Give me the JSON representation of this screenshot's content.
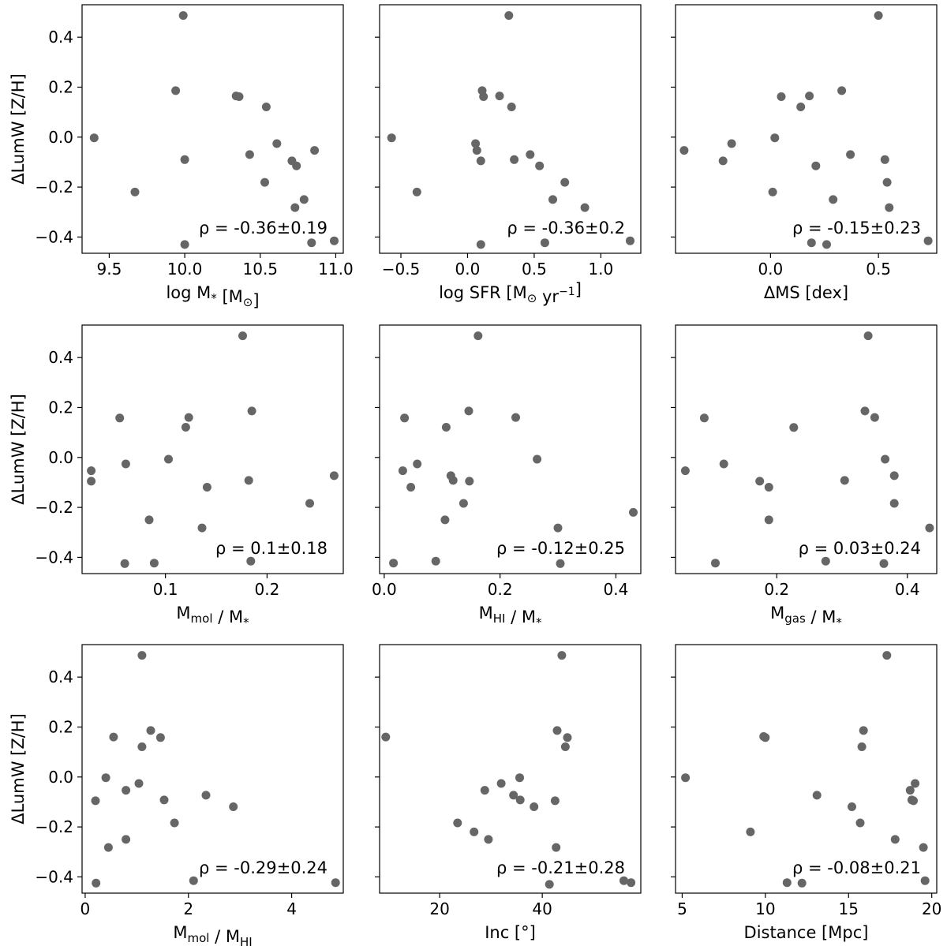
{
  "figure": {
    "ylabel": "ΔLumW [Z/H]",
    "marker_color": "#666666"
  },
  "chart_data": [
    {
      "type": "scatter",
      "xlabel": "log M* [M⊙]",
      "xlabel_parts": [
        {
          "t": "log M"
        },
        {
          "t": "*",
          "sub": true
        },
        {
          "t": " [M"
        },
        {
          "t": "⊙",
          "sub": true
        },
        {
          "t": "]"
        }
      ],
      "ylabel": "ΔLumW [Z/H]",
      "xlim": [
        9.32,
        11.05
      ],
      "ylim": [
        -0.465,
        0.53
      ],
      "xticks": [
        9.5,
        10.0,
        10.5,
        11.0
      ],
      "xtick_labels": [
        "9.5",
        "10.0",
        "10.5",
        "11.0"
      ],
      "yticks": [
        -0.4,
        -0.2,
        0.0,
        0.2,
        0.4
      ],
      "ytick_labels": [
        "−0.4",
        "−0.2",
        "0.0",
        "0.2",
        "0.4"
      ],
      "annotation": "ρ = -0.36±0.19",
      "x": [
        9.99,
        9.94,
        10.34,
        10.36,
        10.54,
        9.4,
        10.61,
        10.86,
        10.43,
        10.71,
        10.0,
        10.74,
        10.53,
        9.67,
        10.79,
        10.73,
        10.99,
        10.84,
        10.0
      ],
      "y": [
        0.487,
        0.186,
        0.165,
        0.162,
        0.121,
        -0.003,
        -0.026,
        -0.053,
        -0.07,
        -0.095,
        -0.09,
        -0.115,
        -0.181,
        -0.22,
        -0.25,
        -0.282,
        -0.415,
        -0.423,
        -0.43
      ]
    },
    {
      "type": "scatter",
      "xlabel": "log SFR [M⊙ yr−1]",
      "xlabel_parts": [
        {
          "t": "log SFR [M"
        },
        {
          "t": "⊙",
          "sub": true
        },
        {
          "t": " yr"
        },
        {
          "t": "−1",
          "sup": true
        },
        {
          "t": "]"
        }
      ],
      "ylabel": "",
      "xlim": [
        -0.66,
        1.3
      ],
      "ylim": [
        -0.465,
        0.53
      ],
      "xticks": [
        -0.5,
        0.0,
        0.5,
        1.0
      ],
      "xtick_labels": [
        "−0.5",
        "0.0",
        "0.5",
        "1.0"
      ],
      "yticks": [
        -0.4,
        -0.2,
        0.0,
        0.2,
        0.4
      ],
      "ytick_labels": [],
      "annotation": "ρ = -0.36±0.2",
      "x": [
        0.31,
        0.11,
        0.12,
        0.24,
        0.33,
        -0.57,
        0.06,
        0.07,
        0.47,
        0.1,
        0.35,
        0.54,
        0.73,
        -0.38,
        0.64,
        0.88,
        1.22,
        0.58,
        0.1
      ],
      "y": [
        0.487,
        0.186,
        0.162,
        0.165,
        0.121,
        -0.003,
        -0.026,
        -0.053,
        -0.07,
        -0.095,
        -0.09,
        -0.115,
        -0.181,
        -0.22,
        -0.25,
        -0.282,
        -0.415,
        -0.423,
        -0.43
      ]
    },
    {
      "type": "scatter",
      "xlabel": "ΔMS [dex]",
      "xlabel_parts": [
        {
          "t": "ΔMS [dex]"
        }
      ],
      "ylabel": "",
      "xlim": [
        -0.44,
        0.77
      ],
      "ylim": [
        -0.465,
        0.53
      ],
      "xticks": [
        0.0,
        0.5
      ],
      "xtick_labels": [
        "0.0",
        "0.5"
      ],
      "yticks": [
        -0.4,
        -0.2,
        0.0,
        0.2,
        0.4
      ],
      "ytick_labels": [],
      "annotation": "ρ = -0.15±0.23",
      "x": [
        0.5,
        0.33,
        0.05,
        0.18,
        0.14,
        0.02,
        -0.18,
        -0.4,
        0.37,
        -0.22,
        0.53,
        0.21,
        0.54,
        0.01,
        0.29,
        0.55,
        0.73,
        0.19,
        0.26
      ],
      "y": [
        0.487,
        0.186,
        0.162,
        0.165,
        0.121,
        -0.003,
        -0.026,
        -0.053,
        -0.07,
        -0.095,
        -0.09,
        -0.115,
        -0.181,
        -0.22,
        -0.25,
        -0.282,
        -0.415,
        -0.423,
        -0.43
      ]
    },
    {
      "type": "scatter",
      "xlabel": "Mmol / M*",
      "xlabel_parts": [
        {
          "t": "M"
        },
        {
          "t": "mol",
          "sub": true
        },
        {
          "t": " /  M"
        },
        {
          "t": "*",
          "sub": true
        }
      ],
      "ylabel": "ΔLumW [Z/H]",
      "xlim": [
        0.018,
        0.275
      ],
      "ylim": [
        -0.465,
        0.53
      ],
      "xticks": [
        0.1,
        0.2
      ],
      "xtick_labels": [
        "0.1",
        "0.2"
      ],
      "yticks": [
        -0.4,
        -0.2,
        0.0,
        0.2,
        0.4
      ],
      "ytick_labels": [
        "−0.4",
        "−0.2",
        "0.0",
        "0.2",
        "0.4"
      ],
      "annotation": "ρ = 0.1±0.18",
      "x": [
        0.176,
        0.185,
        0.055,
        0.123,
        0.12,
        0.103,
        0.061,
        0.027,
        0.266,
        0.027,
        0.182,
        0.141,
        0.242,
        0.084,
        0.136,
        0.184,
        0.089,
        0.06
      ],
      "y": [
        0.487,
        0.186,
        0.158,
        0.16,
        0.121,
        -0.007,
        -0.026,
        -0.053,
        -0.073,
        -0.095,
        -0.092,
        -0.119,
        -0.184,
        -0.25,
        -0.282,
        -0.415,
        -0.423,
        -0.425
      ]
    },
    {
      "type": "scatter",
      "xlabel": "MHI / M*",
      "xlabel_parts": [
        {
          "t": "M"
        },
        {
          "t": "HI",
          "sub": true
        },
        {
          "t": " /  M"
        },
        {
          "t": "*",
          "sub": true
        }
      ],
      "ylabel": "",
      "xlim": [
        -0.008,
        0.443
      ],
      "ylim": [
        -0.465,
        0.53
      ],
      "xticks": [
        0.0,
        0.2,
        0.4
      ],
      "xtick_labels": [
        "0.0",
        "0.2",
        "0.4"
      ],
      "yticks": [
        -0.4,
        -0.2,
        0.0,
        0.2,
        0.4
      ],
      "ytick_labels": [],
      "annotation": "ρ = -0.12±0.25",
      "x": [
        0.162,
        0.035,
        0.146,
        0.227,
        0.107,
        0.264,
        0.057,
        0.032,
        0.115,
        0.119,
        0.147,
        0.046,
        0.137,
        0.105,
        0.43,
        0.3,
        0.089,
        0.016,
        0.304
      ],
      "y": [
        0.487,
        0.158,
        0.186,
        0.16,
        0.121,
        -0.007,
        -0.026,
        -0.053,
        -0.073,
        -0.092,
        -0.095,
        -0.119,
        -0.184,
        -0.25,
        -0.22,
        -0.282,
        -0.415,
        -0.423,
        -0.425
      ]
    },
    {
      "type": "scatter",
      "xlabel": "Mgas / M*",
      "xlabel_parts": [
        {
          "t": "M"
        },
        {
          "t": "gas",
          "sub": true
        },
        {
          "t": " /  M"
        },
        {
          "t": "*",
          "sub": true
        }
      ],
      "ylabel": "",
      "xlim": [
        0.045,
        0.445
      ],
      "ylim": [
        -0.465,
        0.53
      ],
      "xticks": [
        0.2,
        0.4
      ],
      "xtick_labels": [
        "0.2",
        "0.4"
      ],
      "yticks": [
        -0.4,
        -0.2,
        0.0,
        0.2,
        0.4
      ],
      "ytick_labels": [],
      "annotation": "ρ = 0.03±0.24",
      "x": [
        0.34,
        0.089,
        0.335,
        0.35,
        0.226,
        0.366,
        0.119,
        0.06,
        0.38,
        0.174,
        0.304,
        0.188,
        0.38,
        0.188,
        0.434,
        0.275,
        0.106,
        0.364
      ],
      "y": [
        0.487,
        0.158,
        0.186,
        0.16,
        0.12,
        -0.007,
        -0.026,
        -0.053,
        -0.073,
        -0.095,
        -0.092,
        -0.119,
        -0.184,
        -0.25,
        -0.282,
        -0.415,
        -0.423,
        -0.425
      ]
    },
    {
      "type": "scatter",
      "xlabel": "Mmol / MHI",
      "xlabel_parts": [
        {
          "t": "M"
        },
        {
          "t": "mol",
          "sub": true
        },
        {
          "t": " /  M"
        },
        {
          "t": "HI",
          "sub": true
        }
      ],
      "ylabel": "ΔLumW [Z/H]",
      "xlim": [
        -0.06,
        5.0
      ],
      "ylim": [
        -0.465,
        0.53
      ],
      "xticks": [
        0,
        2,
        4
      ],
      "xtick_labels": [
        "0",
        "2",
        "4"
      ],
      "yticks": [
        -0.4,
        -0.2,
        0.0,
        0.2,
        0.4
      ],
      "ytick_labels": [
        "−0.4",
        "−0.2",
        "0.0",
        "0.2",
        "0.4"
      ],
      "annotation": "ρ = -0.29±0.24",
      "x": [
        1.1,
        1.27,
        0.55,
        1.46,
        1.1,
        0.4,
        1.04,
        0.79,
        2.34,
        0.2,
        1.53,
        2.87,
        1.73,
        0.79,
        0.45,
        2.1,
        4.85,
        0.21
      ],
      "y": [
        0.487,
        0.186,
        0.16,
        0.158,
        0.121,
        -0.003,
        -0.026,
        -0.053,
        -0.073,
        -0.095,
        -0.092,
        -0.119,
        -0.184,
        -0.25,
        -0.282,
        -0.415,
        -0.423,
        -0.425
      ]
    },
    {
      "type": "scatter",
      "xlabel": "Inc [°]",
      "xlabel_parts": [
        {
          "t": "Inc [°]"
        }
      ],
      "ylabel": "",
      "xlim": [
        8.3,
        59.2
      ],
      "ylim": [
        -0.465,
        0.53
      ],
      "xticks": [
        20,
        40
      ],
      "xtick_labels": [
        "20",
        "40"
      ],
      "yticks": [
        -0.4,
        -0.2,
        0.0,
        0.2,
        0.4
      ],
      "ytick_labels": [],
      "annotation": "ρ = -0.21±0.28",
      "x": [
        43.8,
        42.9,
        9.5,
        44.9,
        44.5,
        35.6,
        32.0,
        28.8,
        34.4,
        42.5,
        35.7,
        38.4,
        23.5,
        26.7,
        29.5,
        42.7,
        55.9,
        57.3,
        41.4
      ],
      "y": [
        0.487,
        0.186,
        0.16,
        0.158,
        0.121,
        -0.003,
        -0.026,
        -0.053,
        -0.073,
        -0.095,
        -0.092,
        -0.119,
        -0.184,
        -0.22,
        -0.25,
        -0.282,
        -0.415,
        -0.423,
        -0.43
      ]
    },
    {
      "type": "scatter",
      "xlabel": "Distance [Mpc]",
      "xlabel_parts": [
        {
          "t": "Distance [Mpc]"
        }
      ],
      "ylabel": "",
      "xlim": [
        4.6,
        20.3
      ],
      "ylim": [
        -0.465,
        0.53
      ],
      "xticks": [
        5,
        10,
        15,
        20
      ],
      "xtick_labels": [
        "5",
        "10",
        "15",
        "20"
      ],
      "yticks": [
        -0.4,
        -0.2,
        0.0,
        0.2,
        0.4
      ],
      "ytick_labels": [],
      "annotation": "ρ = -0.08±0.21",
      "x": [
        17.3,
        15.9,
        9.9,
        10.0,
        15.8,
        5.2,
        19.0,
        18.7,
        13.1,
        18.8,
        18.9,
        15.2,
        15.7,
        9.1,
        17.8,
        19.5,
        19.6,
        11.3,
        12.2
      ],
      "y": [
        0.487,
        0.186,
        0.162,
        0.158,
        0.121,
        -0.003,
        -0.026,
        -0.053,
        -0.073,
        -0.092,
        -0.095,
        -0.119,
        -0.184,
        -0.22,
        -0.25,
        -0.282,
        -0.415,
        -0.423,
        -0.425
      ]
    }
  ]
}
